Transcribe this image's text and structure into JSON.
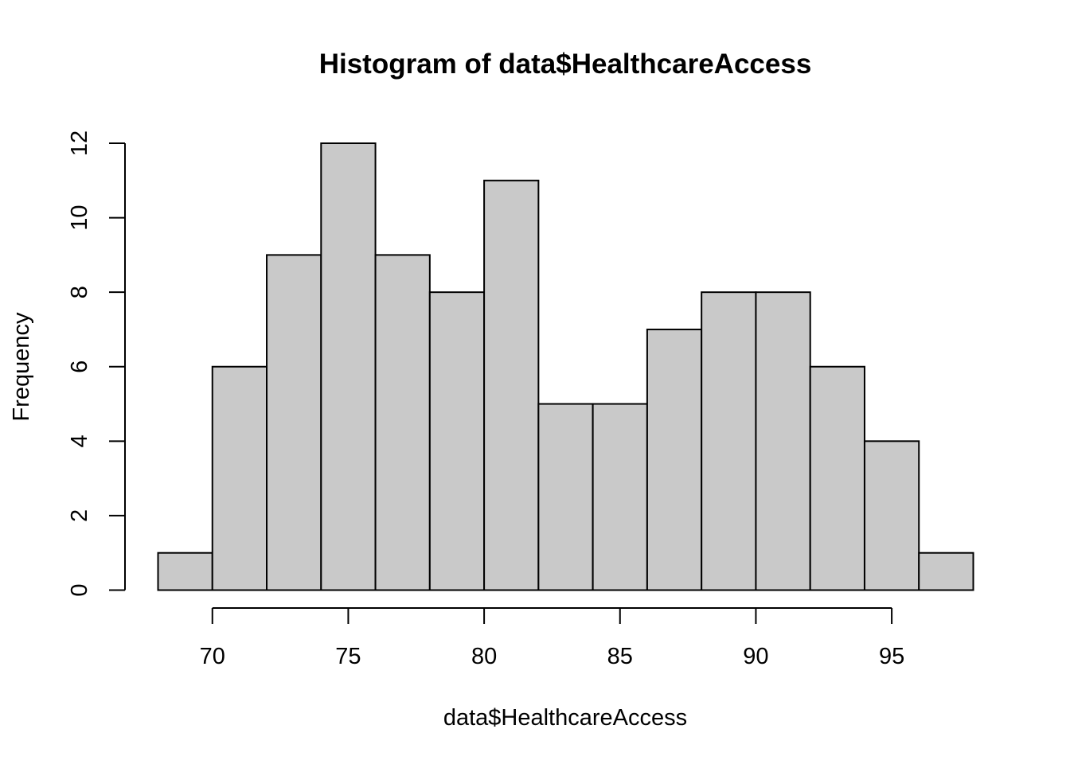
{
  "chart_data": {
    "type": "bar",
    "subtype": "histogram",
    "title": "Histogram of data$HealthcareAccess",
    "xlabel": "data$HealthcareAccess",
    "ylabel": "Frequency",
    "bin_edges": [
      68,
      70,
      72,
      74,
      76,
      78,
      80,
      82,
      84,
      86,
      88,
      90,
      92,
      94,
      96,
      98
    ],
    "values": [
      1,
      6,
      9,
      12,
      9,
      8,
      11,
      5,
      5,
      7,
      8,
      8,
      6,
      4,
      1
    ],
    "xlim": [
      68,
      98
    ],
    "ylim": [
      0,
      12
    ],
    "x_ticks": [
      70,
      75,
      80,
      85,
      90,
      95
    ],
    "y_ticks": [
      0,
      2,
      4,
      6,
      8,
      10,
      12
    ],
    "bar_color": "#c9c9c9",
    "border_color": "#000000",
    "grid": false,
    "legend": "none"
  }
}
